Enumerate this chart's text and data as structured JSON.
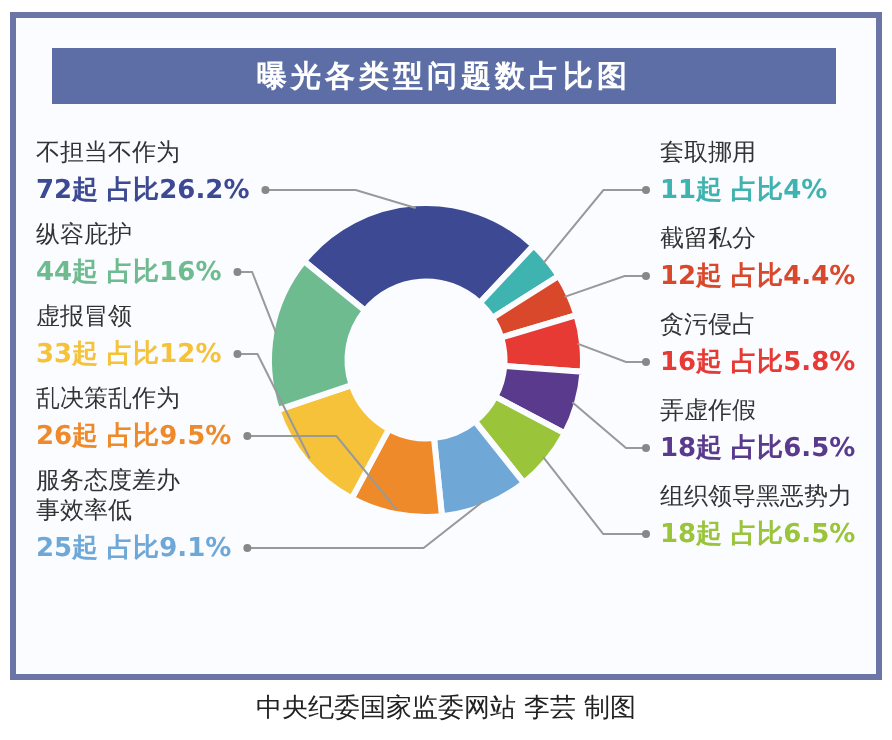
{
  "chart_data": {
    "type": "donut",
    "title": "曝光各类型问题数占比图",
    "categories": [
      "不担当不作为",
      "套取挪用",
      "截留私分",
      "贪污侵占",
      "弄虚作假",
      "组织领导黑恶势力",
      "服务态度差办事效率低",
      "乱决策乱作为",
      "虚报冒领",
      "纵容庇护"
    ],
    "values": [
      72,
      11,
      12,
      16,
      18,
      18,
      25,
      26,
      33,
      44
    ],
    "value_labels": [
      "72起 占比26.2%",
      "11起 占比4%",
      "12起 占比4.4%",
      "16起 占比5.8%",
      "18起 占比6.5%",
      "18起 占比6.5%",
      "25起 占比9.1%",
      "26起 占比9.5%",
      "33起 占比12%",
      "44起 占比16%"
    ],
    "colors": [
      "#3d4a93",
      "#3fb3b0",
      "#d9482b",
      "#e83a35",
      "#5a3a8c",
      "#9ac43a",
      "#6fa8d6",
      "#ee8a2a",
      "#f5c23a",
      "#6dbb8f"
    ],
    "legend": false,
    "annotations": [
      "中央纪委国家监委网站 李芸 制图"
    ]
  }
}
